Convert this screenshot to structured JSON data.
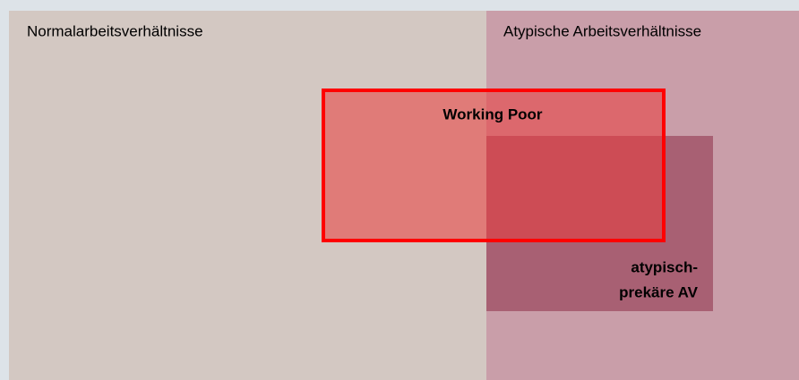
{
  "regions": {
    "normal": {
      "label": "Normalarbeitsverhältnisse"
    },
    "atypical": {
      "label": "Atypische Arbeitsverhältnisse"
    },
    "precarious": {
      "lines": [
        "atypisch-",
        "prekäre AV"
      ]
    },
    "working_poor": {
      "label": "Working Poor"
    }
  }
}
